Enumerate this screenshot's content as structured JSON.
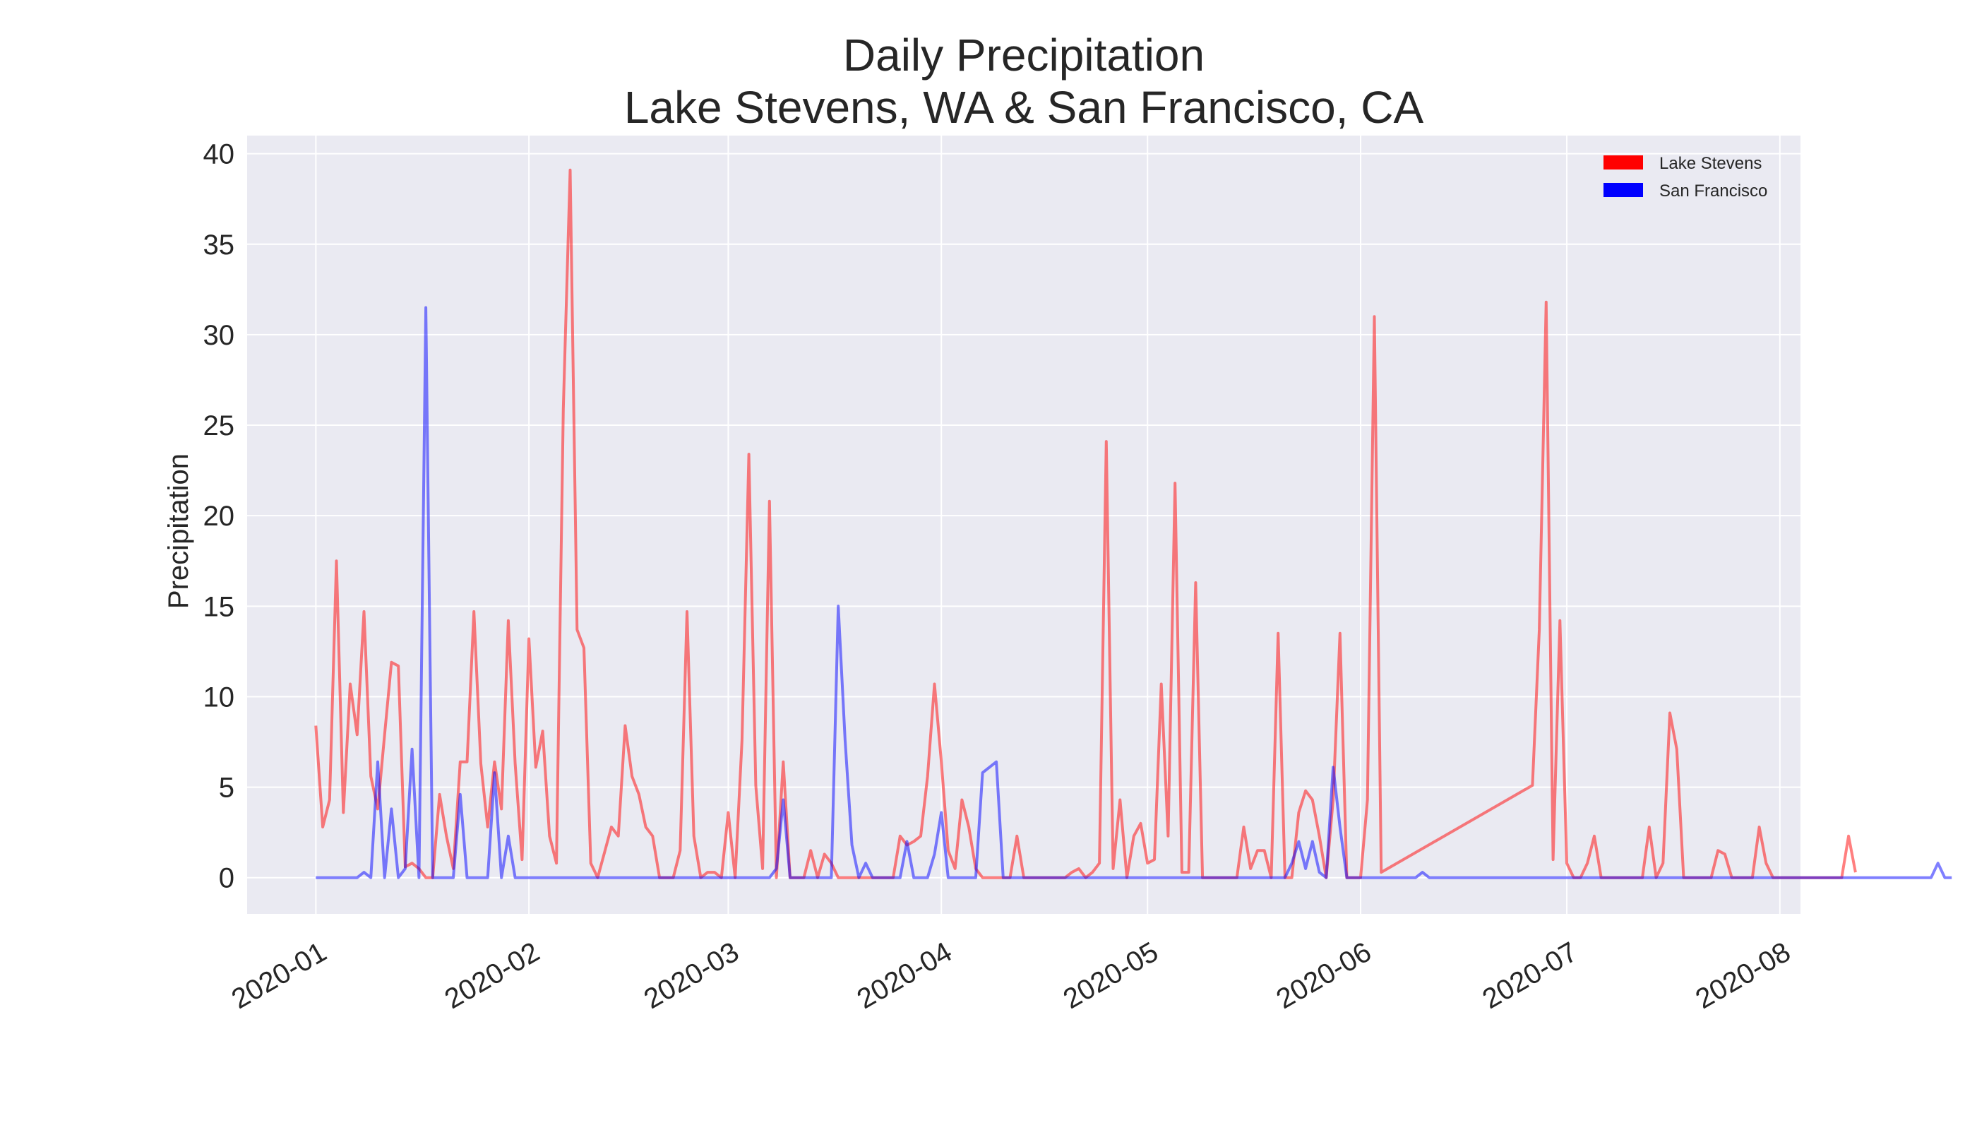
{
  "chart_data": {
    "type": "line",
    "title": "Daily Precipitation",
    "subtitle": "Lake Stevens, WA & San Francisco, CA",
    "xlabel": "",
    "ylabel": "Precipitation",
    "x_start": "2020-01-01",
    "x_end": "2020-07-25",
    "xlim": [
      "2019-12-22",
      "2020-08-04"
    ],
    "ylim": [
      -2,
      41
    ],
    "yticks": [
      0,
      5,
      10,
      15,
      20,
      25,
      30,
      35,
      40
    ],
    "xticks": [
      "2020-01",
      "2020-02",
      "2020-03",
      "2020-04",
      "2020-05",
      "2020-06",
      "2020-07",
      "2020-08"
    ],
    "grid": true,
    "legend_position": "top-right",
    "series": [
      {
        "name": "Lake Stevens",
        "color": "#ff0000",
        "values": [
          8.4,
          2.8,
          4.3,
          17.5,
          3.6,
          10.7,
          7.9,
          14.7,
          5.6,
          3.8,
          7.9,
          11.9,
          11.7,
          0.6,
          0.8,
          0.5,
          0,
          0,
          4.6,
          2.3,
          0.5,
          6.4,
          6.4,
          14.7,
          6.3,
          2.8,
          6.4,
          3.8,
          14.2,
          6.3,
          1,
          13.2,
          6.1,
          8.1,
          2.3,
          0.8,
          25.9,
          39.1,
          13.7,
          12.7,
          0.8,
          0,
          1.4,
          2.8,
          2.3,
          8.4,
          5.6,
          4.6,
          2.8,
          2.3,
          0,
          0,
          0,
          1.5,
          14.7,
          2.3,
          0,
          0.3,
          0.3,
          0,
          3.6,
          0,
          7.6,
          23.4,
          5.1,
          0.5,
          20.8,
          0,
          6.4,
          0,
          0,
          0,
          1.5,
          0,
          1.3,
          0.8,
          0,
          0,
          0,
          0,
          0,
          0,
          0,
          0,
          0,
          2.3,
          1.8,
          2,
          2.3,
          5.6,
          10.7,
          6.4,
          1.5,
          0.5,
          4.3,
          2.8,
          0.5,
          0,
          0,
          0,
          0,
          0,
          2.3,
          0,
          0,
          0,
          0,
          0,
          0,
          0,
          0.3,
          0.5,
          0,
          0.3,
          0.8,
          24.1,
          0.5,
          4.3,
          0,
          2.3,
          3,
          0.8,
          1,
          10.7,
          2.3,
          21.8,
          0.3,
          0.3,
          16.3,
          0,
          0,
          0,
          0,
          0,
          0,
          2.8,
          0.5,
          1.5,
          1.5,
          0,
          13.5,
          0,
          0,
          3.6,
          4.8,
          4.3,
          2.3,
          0,
          4.3,
          13.5,
          0,
          0,
          0,
          4.3,
          31,
          0.3,
          null,
          null,
          null,
          null,
          null,
          null,
          null,
          null,
          null,
          null,
          null,
          null,
          null,
          null,
          null,
          null,
          null,
          null,
          null,
          null,
          null,
          5.1,
          13.7,
          31.8,
          1,
          14.2,
          0.8,
          0,
          0,
          0.8,
          2.3,
          0,
          0,
          0,
          0,
          0,
          0,
          0,
          2.8,
          0,
          0.8,
          9.1,
          7.1,
          0,
          0,
          0,
          0,
          0,
          1.5,
          1.3,
          0,
          0,
          0,
          0,
          2.8,
          0.8,
          0,
          0,
          0,
          0,
          0,
          0,
          0,
          0,
          0,
          0,
          0,
          2.3,
          0.3
        ]
      },
      {
        "name": "San Francisco",
        "color": "#0000ff",
        "values": [
          0,
          0,
          0,
          0,
          0,
          0,
          0,
          0.3,
          0,
          6.4,
          0,
          3.8,
          0,
          0.5,
          7.1,
          0,
          31.5,
          0,
          0,
          0,
          0,
          4.6,
          0,
          0,
          0,
          0,
          5.8,
          0,
          2.3,
          0,
          0,
          0,
          0,
          0,
          0,
          0,
          0,
          0,
          0,
          0,
          0,
          0,
          0,
          0,
          0,
          0,
          0,
          0,
          0,
          0,
          0,
          0,
          0,
          0,
          0,
          0,
          0,
          0,
          0,
          0,
          0,
          0,
          0,
          0,
          0,
          0,
          0,
          0.5,
          4.3,
          0,
          0,
          0,
          0,
          0,
          0,
          0,
          15,
          7.6,
          1.8,
          0,
          0.8,
          0,
          0,
          0,
          0,
          0,
          2,
          0,
          0,
          0,
          1.3,
          3.6,
          0,
          0,
          0,
          0,
          0,
          5.8,
          6.1,
          6.4,
          0,
          0,
          0,
          0,
          0,
          0,
          0,
          0,
          0,
          0,
          0,
          0,
          0,
          0,
          0,
          0,
          0,
          0,
          0,
          0,
          0,
          0,
          0,
          0,
          0,
          0,
          0,
          0,
          0,
          0,
          0,
          0,
          0,
          0,
          0,
          0,
          0,
          0,
          0,
          0,
          0,
          0,
          0.8,
          2,
          0.5,
          2,
          0.3,
          0,
          6.1,
          2.8,
          0,
          0,
          0,
          0,
          0,
          0,
          0,
          0,
          0,
          0,
          0,
          0.3,
          0,
          0,
          0,
          0,
          0,
          0,
          0,
          0,
          0,
          0,
          0,
          0,
          0,
          0,
          0,
          0,
          0,
          0,
          0,
          0,
          0,
          0,
          0,
          0,
          0,
          0,
          0,
          0,
          0,
          0,
          0,
          0,
          0,
          0,
          0,
          0,
          0,
          0,
          0,
          0,
          0,
          0,
          0,
          0,
          0,
          0,
          0,
          0,
          0,
          0,
          0,
          0,
          0,
          0,
          0,
          0,
          0,
          0,
          0,
          0,
          0,
          0,
          0,
          0,
          0,
          0,
          0,
          0,
          0,
          0,
          0,
          0,
          0,
          0,
          0.8,
          0,
          0
        ]
      }
    ]
  }
}
